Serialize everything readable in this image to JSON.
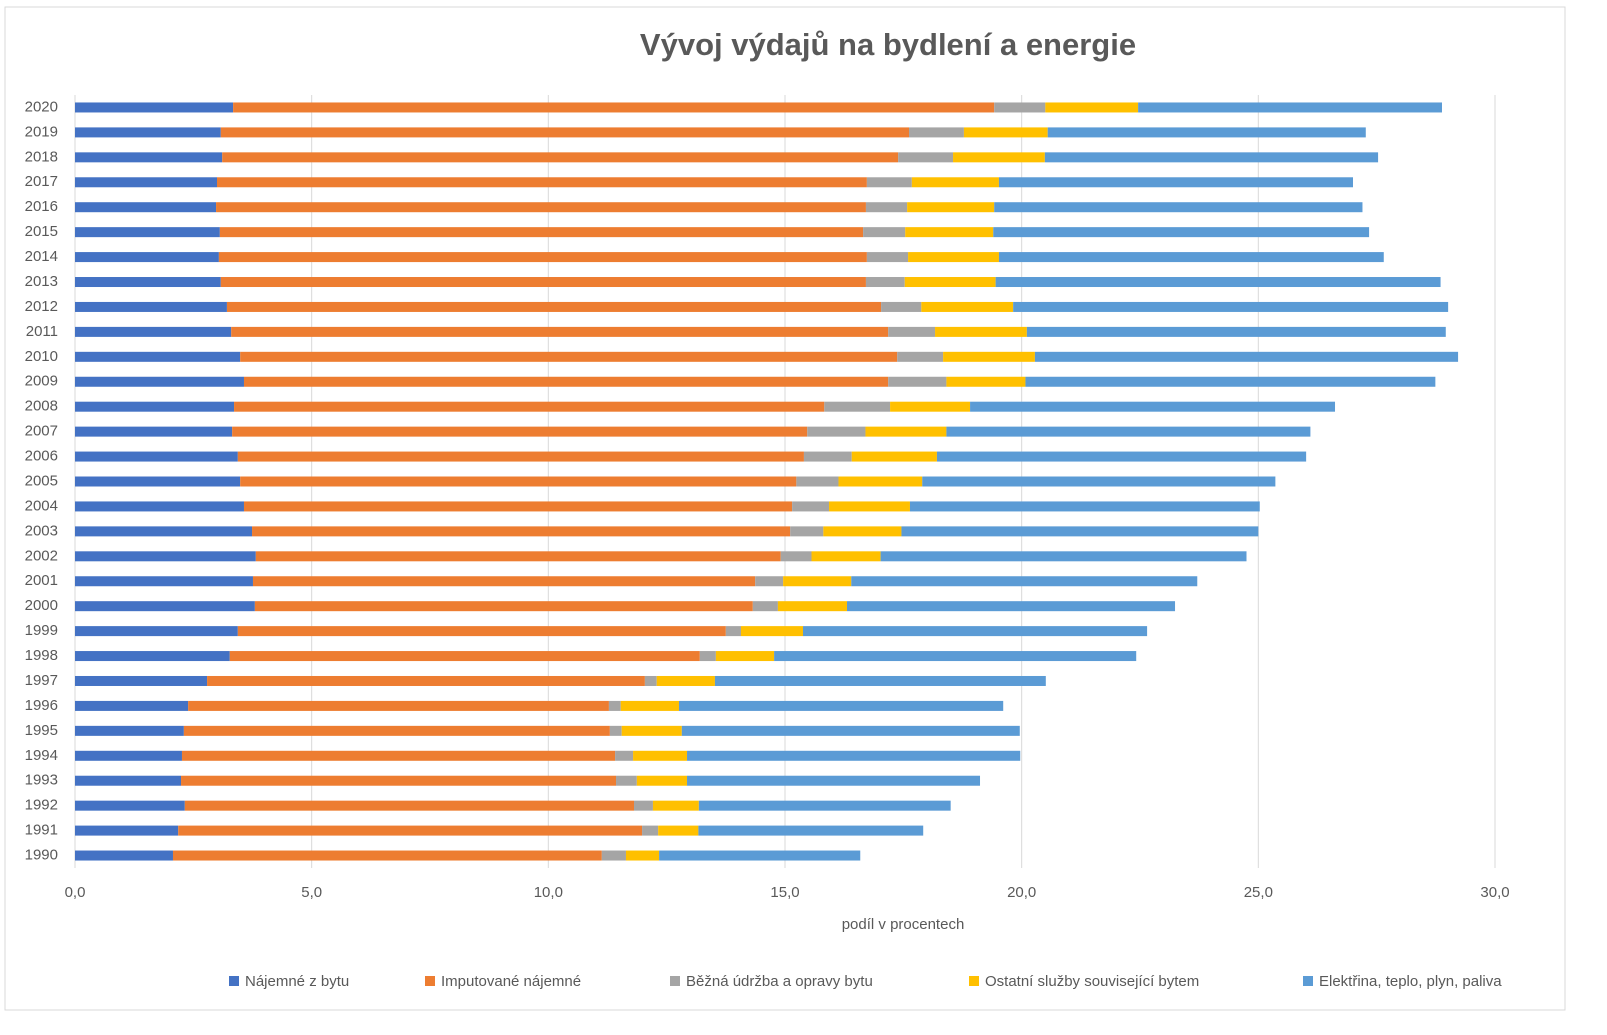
{
  "chart_data": {
    "type": "stacked_barh",
    "title": "Vývoj výdajů na bydlení a energie",
    "x_label": "podíl v procentech",
    "categories": [
      "1990",
      "1991",
      "1992",
      "1993",
      "1994",
      "1995",
      "1996",
      "1997",
      "1998",
      "1999",
      "2000",
      "2001",
      "2002",
      "2003",
      "2004",
      "2005",
      "2006",
      "2007",
      "2008",
      "2009",
      "2010",
      "2011",
      "2012",
      "2013",
      "2014",
      "2015",
      "2016",
      "2017",
      "2018",
      "2019",
      "2020"
    ],
    "series": [
      {
        "name": "Nájemné z bytu",
        "color": "#4472c4",
        "values": [
          2.07,
          2.18,
          2.32,
          2.24,
          2.26,
          2.3,
          2.39,
          2.79,
          3.27,
          3.44,
          3.8,
          3.76,
          3.82,
          3.74,
          3.57,
          3.49,
          3.44,
          3.32,
          3.36,
          3.57,
          3.49,
          3.3,
          3.21,
          3.08,
          3.04,
          3.06,
          2.98,
          3.0,
          3.11,
          3.08,
          3.34
        ]
      },
      {
        "name": "Imputované nájemné",
        "color": "#ed7d31",
        "values": [
          9.06,
          9.8,
          9.49,
          9.19,
          9.15,
          9.0,
          8.89,
          9.25,
          9.93,
          10.31,
          10.52,
          10.61,
          11.09,
          11.37,
          11.58,
          11.75,
          11.96,
          12.15,
          12.47,
          13.61,
          13.88,
          13.88,
          13.82,
          13.63,
          13.69,
          13.59,
          13.73,
          13.73,
          14.28,
          14.54,
          16.08
        ]
      },
      {
        "name": "Běžná údržba a opravy bytu",
        "color": "#a5a5a5",
        "values": [
          0.51,
          0.34,
          0.4,
          0.44,
          0.38,
          0.25,
          0.25,
          0.25,
          0.34,
          0.32,
          0.53,
          0.59,
          0.65,
          0.7,
          0.78,
          0.89,
          1.01,
          1.23,
          1.39,
          1.23,
          0.97,
          0.99,
          0.85,
          0.82,
          0.87,
          0.89,
          0.87,
          0.95,
          1.16,
          1.16,
          1.08
        ]
      },
      {
        "name": "Ostatní služby související bytem",
        "color": "#ffc000",
        "values": [
          0.7,
          0.85,
          0.97,
          1.06,
          1.14,
          1.27,
          1.23,
          1.23,
          1.23,
          1.31,
          1.46,
          1.44,
          1.46,
          1.65,
          1.71,
          1.77,
          1.8,
          1.71,
          1.69,
          1.67,
          1.94,
          1.94,
          1.94,
          1.92,
          1.92,
          1.86,
          1.84,
          1.84,
          1.94,
          1.77,
          1.96
        ]
      },
      {
        "name": "Elektřina, teplo, plyn, paliva",
        "color": "#5b9bd5",
        "values": [
          4.25,
          4.75,
          5.32,
          6.19,
          7.04,
          7.14,
          6.85,
          6.99,
          7.65,
          7.27,
          6.93,
          7.31,
          7.73,
          7.54,
          7.39,
          7.46,
          7.8,
          7.69,
          7.71,
          8.66,
          8.94,
          8.85,
          9.19,
          9.4,
          8.13,
          7.94,
          7.78,
          7.48,
          7.04,
          6.72,
          6.42
        ]
      }
    ],
    "xlim": [
      0,
      30
    ],
    "xticks": [
      {
        "value": 0,
        "label": "0,0"
      },
      {
        "value": 5,
        "label": "5,0"
      },
      {
        "value": 10,
        "label": "10,0"
      },
      {
        "value": 15,
        "label": "15,0"
      },
      {
        "value": 20,
        "label": "20,0"
      },
      {
        "value": 25,
        "label": "25,0"
      },
      {
        "value": 30,
        "label": "30,0"
      }
    ],
    "grid": true,
    "legend": "bottom"
  }
}
